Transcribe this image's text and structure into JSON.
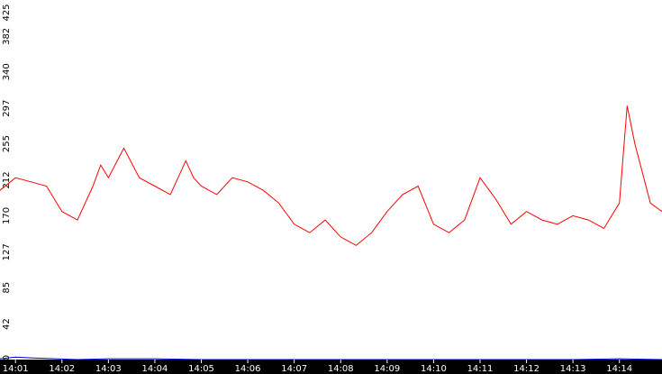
{
  "chart_data": {
    "type": "line",
    "title": "",
    "xlabel": "",
    "ylabel": "",
    "ylim": [
      0,
      425
    ],
    "y_ticks": [
      "0",
      "42",
      "85",
      "127",
      "170",
      "212",
      "255",
      "297",
      "340",
      "382",
      "425"
    ],
    "x_ticks": [
      "14:01",
      "14:02",
      "14:03",
      "14:04",
      "14:05",
      "14:06",
      "14:07",
      "14:08",
      "14:09",
      "14:10",
      "14:11",
      "14:12",
      "14:13",
      "14:14"
    ],
    "xlim": [
      "14:00:40",
      "14:14:55"
    ],
    "grid": false,
    "colors": {
      "series_1": "#ff0000",
      "series_2": "#0000cc",
      "axis_bar": "#000000",
      "background": "#ffffff"
    },
    "series": [
      {
        "color": "#ff0000",
        "x": [
          "14:00:40",
          "14:01:00",
          "14:01:20",
          "14:01:40",
          "14:02:00",
          "14:02:20",
          "14:02:40",
          "14:02:50",
          "14:03:00",
          "14:03:20",
          "14:03:40",
          "14:04:00",
          "14:04:20",
          "14:04:40",
          "14:04:50",
          "14:05:00",
          "14:05:20",
          "14:05:40",
          "14:06:00",
          "14:06:20",
          "14:06:40",
          "14:07:00",
          "14:07:20",
          "14:07:40",
          "14:08:00",
          "14:08:20",
          "14:08:40",
          "14:09:00",
          "14:09:20",
          "14:09:40",
          "14:10:00",
          "14:10:20",
          "14:10:40",
          "14:11:00",
          "14:11:20",
          "14:11:40",
          "14:12:00",
          "14:12:20",
          "14:12:40",
          "14:13:00",
          "14:13:20",
          "14:13:40",
          "14:14:00",
          "14:14:10",
          "14:14:20",
          "14:14:40",
          "14:14:55"
        ],
        "values": [
          200,
          215,
          210,
          205,
          175,
          165,
          205,
          230,
          215,
          250,
          215,
          205,
          195,
          235,
          215,
          205,
          195,
          215,
          210,
          200,
          185,
          160,
          150,
          165,
          145,
          135,
          150,
          175,
          195,
          205,
          160,
          150,
          165,
          215,
          190,
          160,
          175,
          165,
          160,
          170,
          165,
          155,
          185,
          300,
          255,
          185,
          175
        ]
      },
      {
        "color": "#0000cc",
        "x": [
          "14:00:40",
          "14:01:00",
          "14:01:20",
          "14:02:20",
          "14:03:00",
          "14:04:00",
          "14:05:00",
          "14:06:00",
          "14:07:00",
          "14:08:00",
          "14:09:00",
          "14:10:00",
          "14:11:00",
          "14:12:00",
          "14:13:00",
          "14:14:00",
          "14:14:55"
        ],
        "values": [
          1,
          3,
          2,
          0,
          1,
          1,
          0,
          0,
          0,
          0,
          0,
          0,
          0,
          0,
          0,
          1,
          0
        ]
      }
    ]
  }
}
